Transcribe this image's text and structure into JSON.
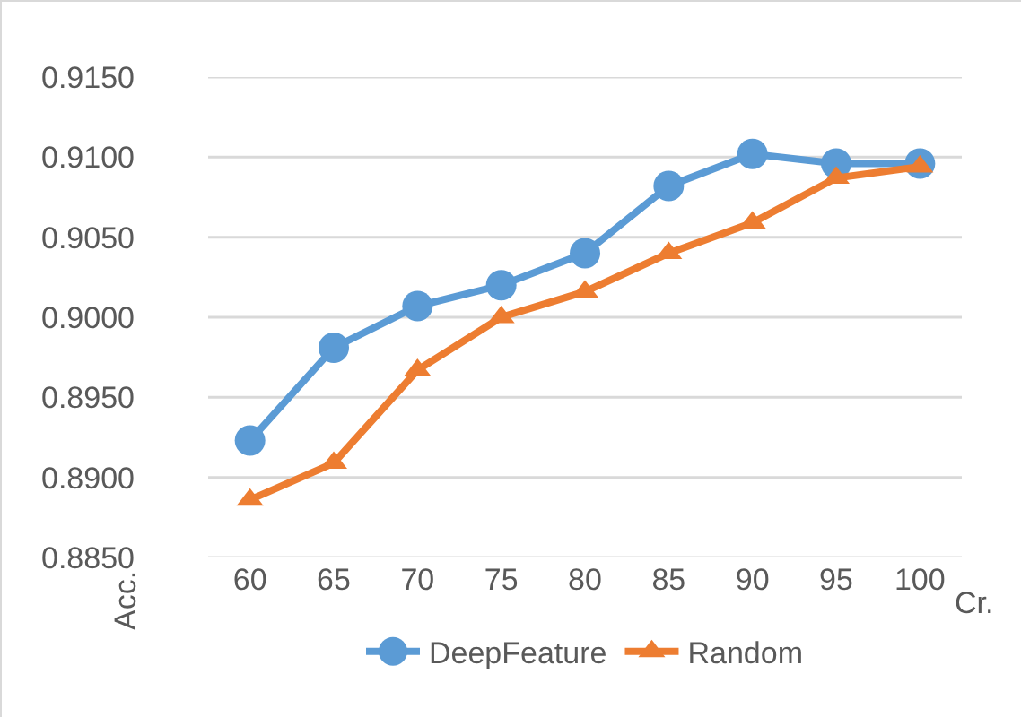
{
  "chart_data": {
    "type": "line",
    "xlabel": "Cr.",
    "ylabel": "Acc.",
    "categories": [
      "60",
      "65",
      "70",
      "75",
      "80",
      "85",
      "90",
      "95",
      "100"
    ],
    "series": [
      {
        "name": "DeepFeature",
        "color": "#5b9bd5",
        "marker": "circle",
        "values": [
          0.8923,
          0.8981,
          0.9007,
          0.902,
          0.904,
          0.9082,
          0.9102,
          0.9096,
          0.9096
        ]
      },
      {
        "name": "Random",
        "color": "#ed7d31",
        "marker": "triangle",
        "values": [
          0.8886,
          0.8909,
          0.8967,
          0.9,
          0.9016,
          0.904,
          0.9059,
          0.9087,
          0.9094
        ]
      }
    ],
    "ylim": [
      0.885,
      0.915
    ],
    "yticks": [
      {
        "value": 0.885,
        "label": "0.8850"
      },
      {
        "value": 0.89,
        "label": "0.8900"
      },
      {
        "value": 0.895,
        "label": "0.8950"
      },
      {
        "value": 0.9,
        "label": "0.9000"
      },
      {
        "value": 0.905,
        "label": "0.9050"
      },
      {
        "value": 0.91,
        "label": "0.9100"
      },
      {
        "value": 0.915,
        "label": "0.9150"
      }
    ],
    "grid": "y",
    "legend": "bottom"
  }
}
